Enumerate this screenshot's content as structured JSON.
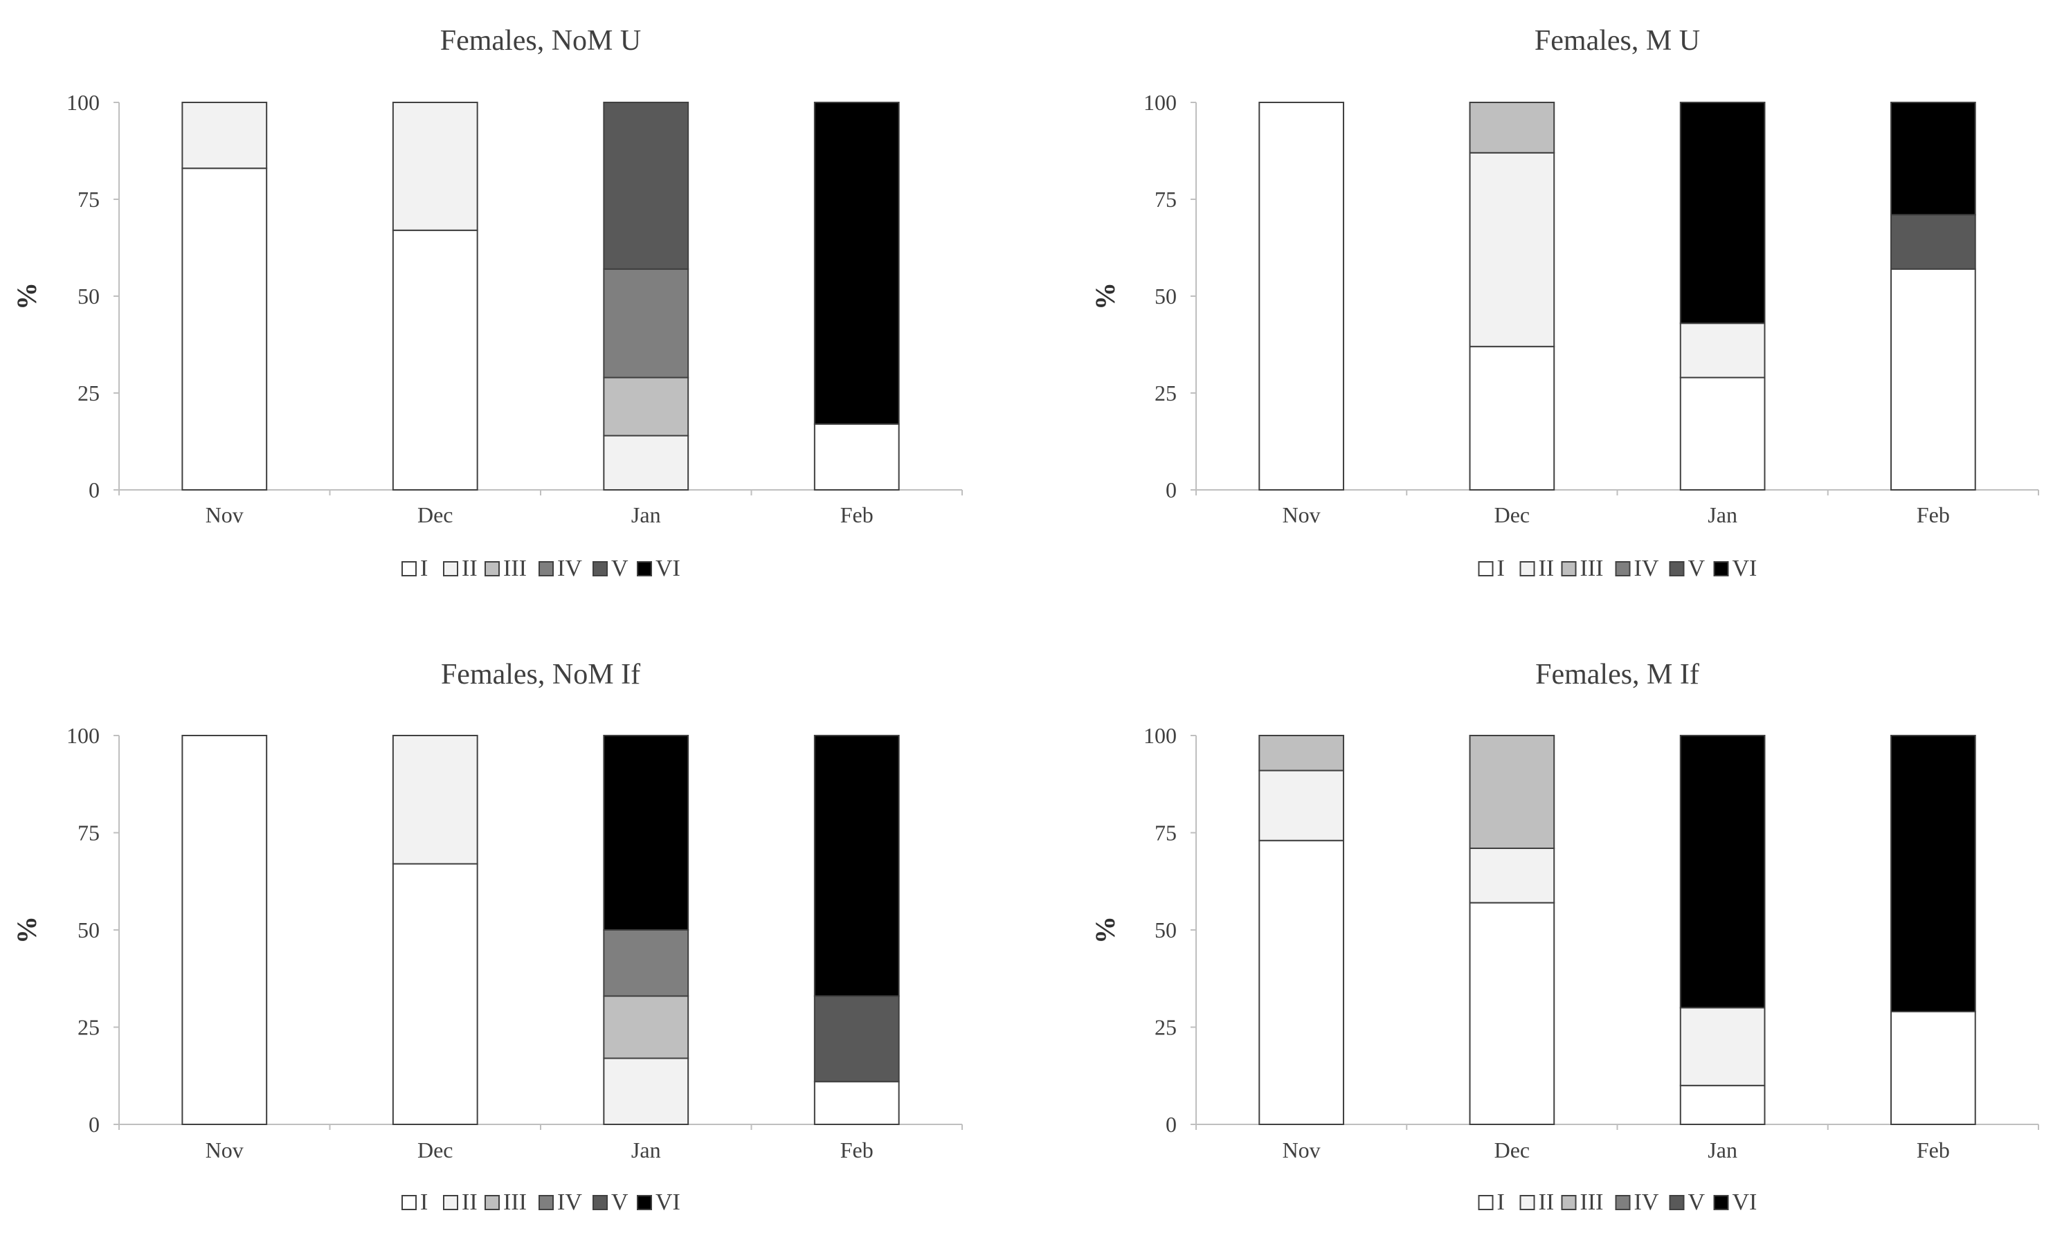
{
  "chart_data": [
    {
      "type": "bar",
      "stacked": true,
      "title": "Females,  NoM U",
      "ylabel": "%",
      "ylim": [
        0,
        100
      ],
      "yticks": [
        "0",
        "25",
        "50",
        "75",
        "100"
      ],
      "categories": [
        "Nov",
        "Dec",
        "Jan",
        "Feb"
      ],
      "series": [
        {
          "name": "I",
          "color": "#ffffff",
          "values": [
            83,
            67,
            0,
            17
          ]
        },
        {
          "name": "II",
          "color": "#f2f2f2",
          "values": [
            17,
            33,
            14,
            0
          ]
        },
        {
          "name": "III",
          "color": "#bfbfbf",
          "values": [
            0,
            0,
            15,
            0
          ]
        },
        {
          "name": "IV",
          "color": "#7f7f7f",
          "values": [
            0,
            0,
            28,
            0
          ]
        },
        {
          "name": "V",
          "color": "#595959",
          "values": [
            0,
            0,
            43,
            0
          ]
        },
        {
          "name": "VI",
          "color": "#000000",
          "values": [
            0,
            0,
            0,
            83
          ]
        }
      ],
      "legend": "bottom"
    },
    {
      "type": "bar",
      "stacked": true,
      "title": "Females,  M U",
      "ylabel": "%",
      "ylim": [
        0,
        100
      ],
      "yticks": [
        "0",
        "25",
        "50",
        "75",
        "100"
      ],
      "categories": [
        "Nov",
        "Dec",
        "Jan",
        "Feb"
      ],
      "series": [
        {
          "name": "I",
          "color": "#ffffff",
          "values": [
            100,
            37,
            29,
            57
          ]
        },
        {
          "name": "II",
          "color": "#f2f2f2",
          "values": [
            0,
            50,
            14,
            0
          ]
        },
        {
          "name": "III",
          "color": "#bfbfbf",
          "values": [
            0,
            13,
            0,
            0
          ]
        },
        {
          "name": "IV",
          "color": "#7f7f7f",
          "values": [
            0,
            0,
            0,
            0
          ]
        },
        {
          "name": "V",
          "color": "#595959",
          "values": [
            0,
            0,
            0,
            14
          ]
        },
        {
          "name": "VI",
          "color": "#000000",
          "values": [
            0,
            0,
            57,
            29
          ]
        }
      ],
      "legend": "bottom"
    },
    {
      "type": "bar",
      "stacked": true,
      "title": "Females,  NoM If",
      "ylabel": "%",
      "ylim": [
        0,
        100
      ],
      "yticks": [
        "0",
        "25",
        "50",
        "75",
        "100"
      ],
      "categories": [
        "Nov",
        "Dec",
        "Jan",
        "Feb"
      ],
      "series": [
        {
          "name": "I",
          "color": "#ffffff",
          "values": [
            100,
            67,
            0,
            11
          ]
        },
        {
          "name": "II",
          "color": "#f2f2f2",
          "values": [
            0,
            33,
            17,
            0
          ]
        },
        {
          "name": "III",
          "color": "#bfbfbf",
          "values": [
            0,
            0,
            16,
            0
          ]
        },
        {
          "name": "IV",
          "color": "#7f7f7f",
          "values": [
            0,
            0,
            17,
            0
          ]
        },
        {
          "name": "V",
          "color": "#595959",
          "values": [
            0,
            0,
            0,
            22
          ]
        },
        {
          "name": "VI",
          "color": "#000000",
          "values": [
            0,
            0,
            50,
            67
          ]
        }
      ],
      "legend": "bottom"
    },
    {
      "type": "bar",
      "stacked": true,
      "title": "Females,  M If",
      "ylabel": "%",
      "ylim": [
        0,
        100
      ],
      "yticks": [
        "0",
        "25",
        "50",
        "75",
        "100"
      ],
      "categories": [
        "Nov",
        "Dec",
        "Jan",
        "Feb"
      ],
      "series": [
        {
          "name": "I",
          "color": "#ffffff",
          "values": [
            73,
            57,
            10,
            29
          ]
        },
        {
          "name": "II",
          "color": "#f2f2f2",
          "values": [
            18,
            14,
            20,
            0
          ]
        },
        {
          "name": "III",
          "color": "#bfbfbf",
          "values": [
            9,
            29,
            0,
            0
          ]
        },
        {
          "name": "IV",
          "color": "#7f7f7f",
          "values": [
            0,
            0,
            0,
            0
          ]
        },
        {
          "name": "V",
          "color": "#595959",
          "values": [
            0,
            0,
            0,
            0
          ]
        },
        {
          "name": "VI",
          "color": "#000000",
          "values": [
            0,
            0,
            70,
            71
          ]
        }
      ],
      "legend": "bottom"
    }
  ]
}
